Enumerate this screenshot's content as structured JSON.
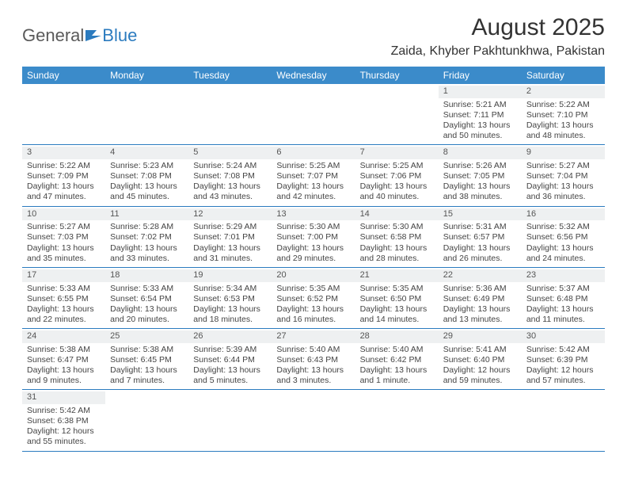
{
  "logo": {
    "part1": "General",
    "part2": "Blue"
  },
  "title": "August 2025",
  "location": "Zaida, Khyber Pakhtunkhwa, Pakistan",
  "colors": {
    "header_bg": "#3b8bca",
    "rule": "#2b7bbf",
    "daynum_bg": "#eef0f1"
  },
  "weekdays": [
    "Sunday",
    "Monday",
    "Tuesday",
    "Wednesday",
    "Thursday",
    "Friday",
    "Saturday"
  ],
  "weeks": [
    [
      null,
      null,
      null,
      null,
      null,
      {
        "n": "1",
        "sr": "Sunrise: 5:21 AM",
        "ss": "Sunset: 7:11 PM",
        "dl": "Daylight: 13 hours and 50 minutes."
      },
      {
        "n": "2",
        "sr": "Sunrise: 5:22 AM",
        "ss": "Sunset: 7:10 PM",
        "dl": "Daylight: 13 hours and 48 minutes."
      }
    ],
    [
      {
        "n": "3",
        "sr": "Sunrise: 5:22 AM",
        "ss": "Sunset: 7:09 PM",
        "dl": "Daylight: 13 hours and 47 minutes."
      },
      {
        "n": "4",
        "sr": "Sunrise: 5:23 AM",
        "ss": "Sunset: 7:08 PM",
        "dl": "Daylight: 13 hours and 45 minutes."
      },
      {
        "n": "5",
        "sr": "Sunrise: 5:24 AM",
        "ss": "Sunset: 7:08 PM",
        "dl": "Daylight: 13 hours and 43 minutes."
      },
      {
        "n": "6",
        "sr": "Sunrise: 5:25 AM",
        "ss": "Sunset: 7:07 PM",
        "dl": "Daylight: 13 hours and 42 minutes."
      },
      {
        "n": "7",
        "sr": "Sunrise: 5:25 AM",
        "ss": "Sunset: 7:06 PM",
        "dl": "Daylight: 13 hours and 40 minutes."
      },
      {
        "n": "8",
        "sr": "Sunrise: 5:26 AM",
        "ss": "Sunset: 7:05 PM",
        "dl": "Daylight: 13 hours and 38 minutes."
      },
      {
        "n": "9",
        "sr": "Sunrise: 5:27 AM",
        "ss": "Sunset: 7:04 PM",
        "dl": "Daylight: 13 hours and 36 minutes."
      }
    ],
    [
      {
        "n": "10",
        "sr": "Sunrise: 5:27 AM",
        "ss": "Sunset: 7:03 PM",
        "dl": "Daylight: 13 hours and 35 minutes."
      },
      {
        "n": "11",
        "sr": "Sunrise: 5:28 AM",
        "ss": "Sunset: 7:02 PM",
        "dl": "Daylight: 13 hours and 33 minutes."
      },
      {
        "n": "12",
        "sr": "Sunrise: 5:29 AM",
        "ss": "Sunset: 7:01 PM",
        "dl": "Daylight: 13 hours and 31 minutes."
      },
      {
        "n": "13",
        "sr": "Sunrise: 5:30 AM",
        "ss": "Sunset: 7:00 PM",
        "dl": "Daylight: 13 hours and 29 minutes."
      },
      {
        "n": "14",
        "sr": "Sunrise: 5:30 AM",
        "ss": "Sunset: 6:58 PM",
        "dl": "Daylight: 13 hours and 28 minutes."
      },
      {
        "n": "15",
        "sr": "Sunrise: 5:31 AM",
        "ss": "Sunset: 6:57 PM",
        "dl": "Daylight: 13 hours and 26 minutes."
      },
      {
        "n": "16",
        "sr": "Sunrise: 5:32 AM",
        "ss": "Sunset: 6:56 PM",
        "dl": "Daylight: 13 hours and 24 minutes."
      }
    ],
    [
      {
        "n": "17",
        "sr": "Sunrise: 5:33 AM",
        "ss": "Sunset: 6:55 PM",
        "dl": "Daylight: 13 hours and 22 minutes."
      },
      {
        "n": "18",
        "sr": "Sunrise: 5:33 AM",
        "ss": "Sunset: 6:54 PM",
        "dl": "Daylight: 13 hours and 20 minutes."
      },
      {
        "n": "19",
        "sr": "Sunrise: 5:34 AM",
        "ss": "Sunset: 6:53 PM",
        "dl": "Daylight: 13 hours and 18 minutes."
      },
      {
        "n": "20",
        "sr": "Sunrise: 5:35 AM",
        "ss": "Sunset: 6:52 PM",
        "dl": "Daylight: 13 hours and 16 minutes."
      },
      {
        "n": "21",
        "sr": "Sunrise: 5:35 AM",
        "ss": "Sunset: 6:50 PM",
        "dl": "Daylight: 13 hours and 14 minutes."
      },
      {
        "n": "22",
        "sr": "Sunrise: 5:36 AM",
        "ss": "Sunset: 6:49 PM",
        "dl": "Daylight: 13 hours and 13 minutes."
      },
      {
        "n": "23",
        "sr": "Sunrise: 5:37 AM",
        "ss": "Sunset: 6:48 PM",
        "dl": "Daylight: 13 hours and 11 minutes."
      }
    ],
    [
      {
        "n": "24",
        "sr": "Sunrise: 5:38 AM",
        "ss": "Sunset: 6:47 PM",
        "dl": "Daylight: 13 hours and 9 minutes."
      },
      {
        "n": "25",
        "sr": "Sunrise: 5:38 AM",
        "ss": "Sunset: 6:45 PM",
        "dl": "Daylight: 13 hours and 7 minutes."
      },
      {
        "n": "26",
        "sr": "Sunrise: 5:39 AM",
        "ss": "Sunset: 6:44 PM",
        "dl": "Daylight: 13 hours and 5 minutes."
      },
      {
        "n": "27",
        "sr": "Sunrise: 5:40 AM",
        "ss": "Sunset: 6:43 PM",
        "dl": "Daylight: 13 hours and 3 minutes."
      },
      {
        "n": "28",
        "sr": "Sunrise: 5:40 AM",
        "ss": "Sunset: 6:42 PM",
        "dl": "Daylight: 13 hours and 1 minute."
      },
      {
        "n": "29",
        "sr": "Sunrise: 5:41 AM",
        "ss": "Sunset: 6:40 PM",
        "dl": "Daylight: 12 hours and 59 minutes."
      },
      {
        "n": "30",
        "sr": "Sunrise: 5:42 AM",
        "ss": "Sunset: 6:39 PM",
        "dl": "Daylight: 12 hours and 57 minutes."
      }
    ],
    [
      {
        "n": "31",
        "sr": "Sunrise: 5:42 AM",
        "ss": "Sunset: 6:38 PM",
        "dl": "Daylight: 12 hours and 55 minutes."
      },
      null,
      null,
      null,
      null,
      null,
      null
    ]
  ]
}
